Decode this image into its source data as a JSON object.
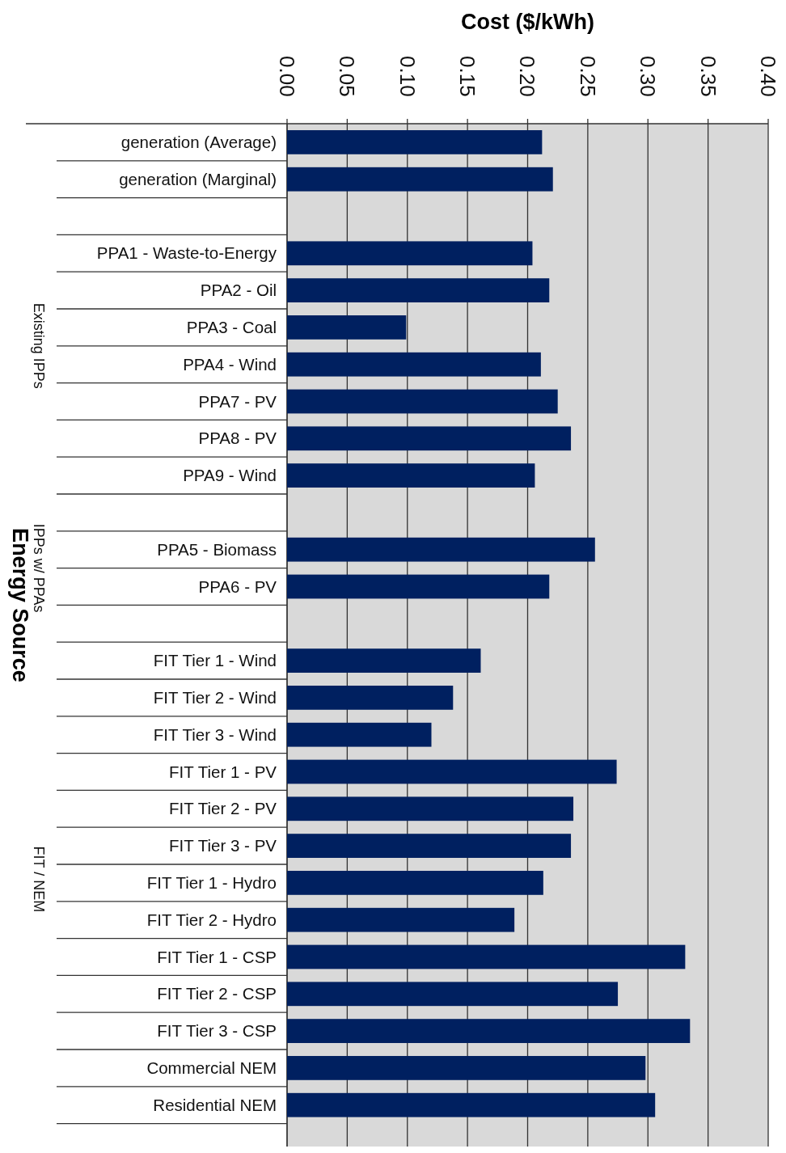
{
  "chart_data": {
    "type": "bar",
    "orientation": "horizontal",
    "xlabel": "Cost ($/kWh)",
    "ylabel": "Energy Source",
    "categories": [
      "generation (Average)",
      "generation (Marginal)",
      null,
      "PPA1 - Waste-to-Energy",
      "PPA2 - Oil",
      "PPA3 - Coal",
      "PPA4 - Wind",
      "PPA7 - PV",
      "PPA8 - PV",
      "PPA9 - Wind",
      null,
      "PPA5 - Biomass",
      "PPA6 - PV",
      null,
      "FIT Tier 1 - Wind",
      "FIT Tier 2 - Wind",
      "FIT Tier 3 - Wind",
      "FIT Tier 1 - PV",
      "FIT Tier 2 - PV",
      "FIT Tier 3 - PV",
      "FIT Tier 1 - Hydro",
      "FIT Tier 2 - Hydro",
      "FIT Tier 1 - CSP",
      "FIT Tier 2 - CSP",
      "FIT Tier 3 - CSP",
      "Commercial NEM",
      "Residential NEM"
    ],
    "values": [
      0.212,
      0.221,
      null,
      0.204,
      0.218,
      0.099,
      0.211,
      0.225,
      0.236,
      0.206,
      null,
      0.256,
      0.218,
      null,
      0.161,
      0.138,
      0.12,
      0.274,
      0.238,
      0.236,
      0.213,
      0.189,
      0.331,
      0.275,
      0.335,
      0.298,
      0.306
    ],
    "color": "#002060",
    "xlim": [
      0,
      0.4
    ],
    "xticks": [
      {
        "value": 0,
        "label": "0.00"
      },
      {
        "value": 0.05,
        "label": "0.05"
      },
      {
        "value": 0.1,
        "label": "0.10"
      },
      {
        "value": 0.15,
        "label": "0.15"
      },
      {
        "value": 0.2,
        "label": "0.20"
      },
      {
        "value": 0.25,
        "label": "0.25"
      },
      {
        "value": 0.3,
        "label": "0.30"
      },
      {
        "value": 0.35,
        "label": "0.35"
      },
      {
        "value": 0.4,
        "label": "0.40"
      }
    ],
    "grid": "x",
    "annotations": [
      "Existing IPPs",
      "IPPs w/ PPAs",
      "FIT / NEM"
    ]
  }
}
